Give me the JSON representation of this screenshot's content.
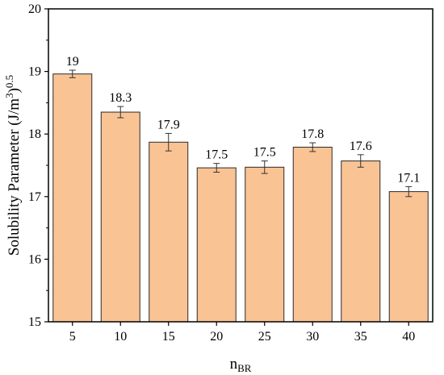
{
  "chart_data": {
    "type": "bar",
    "categories": [
      "5",
      "10",
      "15",
      "20",
      "25",
      "30",
      "35",
      "40"
    ],
    "values": [
      18.96,
      18.35,
      17.87,
      17.46,
      17.47,
      17.79,
      17.57,
      17.08
    ],
    "errors": [
      0.06,
      0.09,
      0.14,
      0.07,
      0.1,
      0.07,
      0.1,
      0.08
    ],
    "data_labels": [
      "19",
      "18.3",
      "17.9",
      "17.5",
      "17.5",
      "17.8",
      "17.6",
      "17.1"
    ],
    "xlabel_main": "n",
    "xlabel_sub": "BR",
    "ylabel_main": "Solubility Parameter (J/m",
    "ylabel_sup1": "3",
    "ylabel_close": ")",
    "ylabel_sup2": "0.5",
    "ylim": [
      15,
      20
    ],
    "yticks": [
      "15",
      "16",
      "17",
      "18",
      "19",
      "20"
    ],
    "bar_color": "#f9c394",
    "bar_edge_color": "#2b2b2b",
    "grid": false
  }
}
